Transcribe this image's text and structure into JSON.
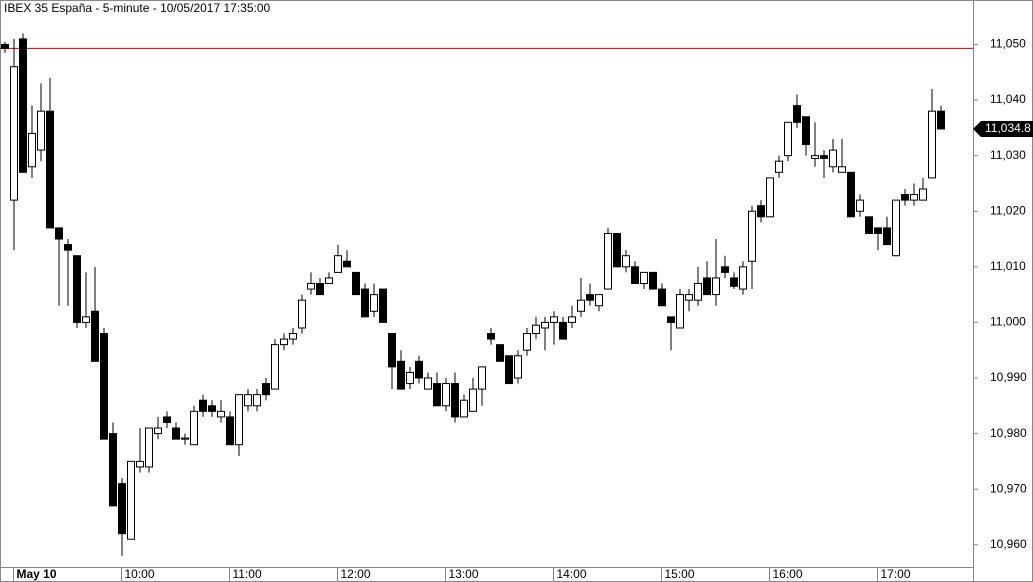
{
  "chart_data": {
    "type": "candlestick",
    "title": "IBEX 35 España - 5-minute - 10/05/2017 17:35:00",
    "categories": [
      null,
      "May 10",
      null,
      null,
      null,
      null,
      null,
      null,
      null,
      null,
      null,
      null,
      null,
      "10:00",
      null,
      null,
      null,
      null,
      null,
      null,
      null,
      null,
      null,
      null,
      null,
      "11:00",
      null,
      null,
      null,
      null,
      null,
      null,
      null,
      null,
      null,
      null,
      null,
      "12:00",
      null,
      null,
      null,
      null,
      null,
      null,
      null,
      null,
      null,
      null,
      null,
      "13:00",
      null,
      null,
      null,
      null,
      null,
      null,
      null,
      null,
      null,
      null,
      null,
      "14:00",
      null,
      null,
      null,
      null,
      null,
      null,
      null,
      null,
      null,
      null,
      null,
      "15:00",
      null,
      null,
      null,
      null,
      null,
      null,
      null,
      null,
      null,
      null,
      null,
      "16:00",
      null,
      null,
      null,
      null,
      null,
      null,
      null,
      null,
      null,
      null,
      null,
      "17:00",
      null,
      null,
      null,
      null,
      null,
      null,
      null
    ],
    "open": [
      11050,
      11022,
      11051,
      11028,
      11031,
      11038,
      11017,
      11014,
      11012,
      11000,
      11002,
      10998,
      10980,
      10971,
      10961,
      10974,
      10974,
      10980,
      10983,
      10981,
      10979,
      10978,
      10986,
      10985,
      10983,
      10983,
      10978,
      10985,
      10985,
      10989,
      10988,
      10996,
      10997,
      10999,
      11006,
      11007,
      11007,
      11009,
      11011,
      11009,
      11006,
      11002,
      11006,
      10998,
      10993,
      10989,
      10993,
      10988,
      10989,
      10985,
      10989,
      10983,
      10984,
      10988,
      10998,
      10996,
      10994,
      10990,
      10995,
      10998,
      10999,
      11000,
      11000,
      11000,
      11002,
      11005,
      11003,
      11006,
      11016,
      11010,
      11010,
      11007,
      11009,
      11006,
      11001,
      10999,
      11004,
      11004,
      11008,
      11005,
      11010,
      11008,
      11006,
      11011,
      11021,
      11019,
      11027,
      11030,
      11039,
      11037,
      11029.5,
      11030,
      11028,
      11027,
      11027,
      11020,
      11019,
      11017,
      11017,
      11012,
      11023,
      11022,
      11022,
      11026,
      11038
    ],
    "high": [
      11050.5,
      11051,
      11052,
      11039,
      11043,
      11044,
      11017,
      11015,
      11012,
      11009,
      11010,
      10999,
      10982,
      10972,
      10975,
      10981,
      10981,
      10983,
      10984,
      10982,
      10980,
      10985,
      10987,
      10986,
      10986,
      10984,
      10987,
      10988,
      10988,
      10990,
      10997,
      10998,
      10999,
      11005,
      11009,
      11008,
      11009,
      11014,
      11013,
      11009,
      11007,
      11007,
      11006,
      10998,
      10995,
      10992,
      10994,
      10991,
      10991,
      10990,
      10991,
      10987,
      10990,
      10992,
      10999,
      10996,
      10994,
      10995,
      10999,
      11001,
      11001,
      11002,
      11001,
      11003,
      11008,
      11007,
      11005,
      11017,
      11016,
      11013,
      11011,
      11009,
      11009,
      11007,
      11001,
      11006,
      11006,
      11010,
      11011,
      11015,
      11012,
      11009,
      11011,
      11021,
      11022,
      11026,
      11030,
      11036,
      11041,
      11037,
      11036,
      11031,
      11033,
      11033,
      11027,
      11023,
      11019,
      11017,
      11019,
      11022,
      11024,
      11025,
      11026,
      11042,
      11039
    ],
    "low": [
      11048.5,
      11013,
      11027,
      11026,
      11029,
      11017,
      11003,
      11003,
      10999,
      10999,
      10993,
      10979,
      10967,
      10958,
      10961,
      10973,
      10973,
      10979,
      10981,
      10979,
      10978,
      10978,
      10983,
      10983,
      10982,
      10978,
      10976,
      10984,
      10984,
      10986,
      10988,
      10995,
      10996,
      10998,
      11005,
      11005,
      11007,
      11009,
      11010,
      11005,
      11001,
      11001,
      11000,
      10988,
      10988,
      10988,
      10989,
      10988,
      10985,
      10984,
      10982,
      10983,
      10984,
      10985,
      10996,
      10993,
      10989,
      10989,
      10994,
      10997,
      10995,
      10996,
      10997,
      10999,
      11001,
      11003,
      11002,
      11006,
      11010,
      11009,
      11007,
      11006,
      11006,
      11003,
      10995,
      10999,
      11002,
      11003,
      11005,
      11003,
      11008,
      11006,
      11005,
      11006,
      11018,
      11019,
      11026,
      11029,
      11035,
      11030,
      11028,
      11026,
      11027,
      11027,
      11019,
      11019,
      11016,
      11013,
      11014,
      11012,
      11021,
      11021,
      11022,
      11026,
      11034.8
    ],
    "close": [
      11049.3,
      11046,
      11027,
      11034,
      11038,
      11017,
      11015,
      11013,
      11000,
      11001,
      10993,
      10979,
      10967,
      10962,
      10975,
      10975,
      10981,
      10981,
      10982,
      10979,
      10979.2,
      10984,
      10984,
      10984,
      10984,
      10978,
      10987,
      10987,
      10987,
      10987,
      10996,
      10997,
      10998,
      11004,
      11007,
      11005,
      11008,
      11012,
      11010,
      11005,
      11001,
      11005,
      11000,
      10992,
      10988,
      10991,
      10990,
      10990,
      10985,
      10989,
      10983,
      10986,
      10988,
      10992,
      10997,
      10993,
      10989,
      10994,
      10998,
      10999.5,
      11000,
      11001,
      10997,
      11001,
      11004,
      11004,
      11005,
      11016,
      11010,
      11012,
      11007,
      11009,
      11006,
      11003,
      11000,
      11005,
      11005,
      11007,
      11005,
      11008,
      11009,
      11006.5,
      11010,
      11020,
      11019,
      11026,
      11029,
      11036,
      11036,
      11032,
      11030,
      11029.5,
      11031,
      11028,
      11019,
      11022,
      11016,
      11016,
      11014,
      11022,
      11022,
      11023,
      11024,
      11038,
      11034.8
    ],
    "up_color": "#ffffff",
    "down_color": "#000000",
    "ylim": [
      10956,
      11058
    ],
    "yticks": [
      {
        "value": 10960,
        "label": "10,960"
      },
      {
        "value": 10970,
        "label": "10,970"
      },
      {
        "value": 10980,
        "label": "10,980"
      },
      {
        "value": 10990,
        "label": "10,990"
      },
      {
        "value": 11000,
        "label": "11,000"
      },
      {
        "value": 11010,
        "label": "11,010"
      },
      {
        "value": 11020,
        "label": "11,020"
      },
      {
        "value": 11030,
        "label": "11,030"
      },
      {
        "value": 11040,
        "label": "11,040"
      },
      {
        "value": 11050,
        "label": "11,050"
      }
    ],
    "reference_line": {
      "value": 11049.3,
      "color": "#cc0000"
    },
    "last_price": {
      "value": 11034.8,
      "label": "11,034.8"
    }
  }
}
